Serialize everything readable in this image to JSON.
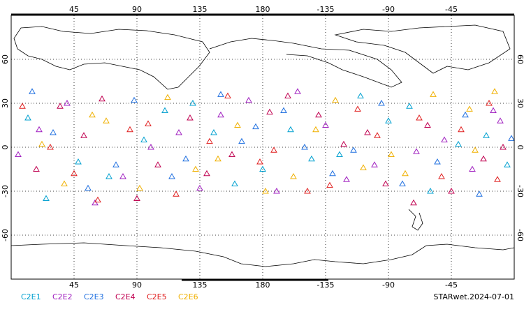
{
  "chart_data": {
    "type": "scatter",
    "footer": "STARwet.2024-07-01",
    "xlim": [
      0,
      360
    ],
    "ylim": [
      -90,
      90
    ],
    "xticks": [
      45,
      90,
      135,
      180,
      {
        "value": 225,
        "label": "-135"
      },
      {
        "value": 270,
        "label": "-90"
      },
      {
        "value": 315,
        "label": "-45"
      }
    ],
    "yticks": [
      60,
      30,
      0,
      -30,
      -60
    ],
    "grid": true,
    "series": [
      {
        "name": "C2E1",
        "color": "#00a0d0",
        "x": [
          12,
          48,
          95,
          130,
          160,
          200,
          235,
          270,
          300,
          340,
          25,
          110,
          180,
          250,
          320,
          70,
          145,
          215,
          285,
          355
        ],
        "values": [
          20,
          -10,
          5,
          30,
          -25,
          12,
          -5,
          18,
          -30,
          8,
          -35,
          25,
          -15,
          35,
          2,
          -20,
          10,
          -8,
          28,
          -12
        ]
      },
      {
        "name": "C2E2",
        "color": "#a020c0",
        "x": [
          5,
          40,
          80,
          120,
          150,
          190,
          225,
          260,
          310,
          345,
          60,
          100,
          170,
          240,
          330,
          20,
          135,
          205,
          290,
          350
        ],
        "values": [
          -5,
          30,
          -20,
          10,
          22,
          -30,
          15,
          -12,
          5,
          25,
          -38,
          0,
          32,
          -22,
          -15,
          12,
          -28,
          38,
          -3,
          18
        ]
      },
      {
        "name": "C2E3",
        "color": "#2070e0",
        "x": [
          30,
          55,
          88,
          125,
          165,
          195,
          230,
          265,
          305,
          335,
          15,
          115,
          175,
          245,
          325,
          75,
          150,
          210,
          280,
          358
        ],
        "values": [
          10,
          -28,
          32,
          -8,
          4,
          25,
          -18,
          30,
          -10,
          -32,
          38,
          -20,
          14,
          -2,
          22,
          -12,
          36,
          0,
          -25,
          6
        ]
      },
      {
        "name": "C2E4",
        "color": "#c00050",
        "x": [
          18,
          52,
          90,
          128,
          158,
          198,
          238,
          268,
          298,
          338,
          35,
          105,
          185,
          255,
          315,
          65,
          140,
          220,
          288,
          352
        ],
        "values": [
          -15,
          8,
          -35,
          20,
          -5,
          35,
          2,
          -25,
          15,
          -8,
          28,
          -12,
          24,
          10,
          -30,
          33,
          -18,
          22,
          -38,
          0
        ]
      },
      {
        "name": "C2E5",
        "color": "#e02020",
        "x": [
          8,
          45,
          85,
          118,
          155,
          188,
          228,
          262,
          308,
          342,
          28,
          98,
          178,
          248,
          322,
          62,
          142,
          212,
          292,
          348
        ],
        "values": [
          28,
          -18,
          12,
          -32,
          35,
          -2,
          -26,
          8,
          -20,
          30,
          0,
          16,
          -10,
          26,
          12,
          -36,
          4,
          -30,
          20,
          -22
        ]
      },
      {
        "name": "C2E6",
        "color": "#f0b000",
        "x": [
          22,
          58,
          92,
          132,
          162,
          202,
          232,
          272,
          302,
          332,
          38,
          112,
          182,
          252,
          328,
          68,
          148,
          218,
          282,
          346
        ],
        "values": [
          2,
          22,
          -28,
          -15,
          15,
          -20,
          32,
          -5,
          36,
          -2,
          -25,
          34,
          -30,
          -14,
          26,
          18,
          -8,
          12,
          -18,
          38
        ]
      }
    ]
  }
}
